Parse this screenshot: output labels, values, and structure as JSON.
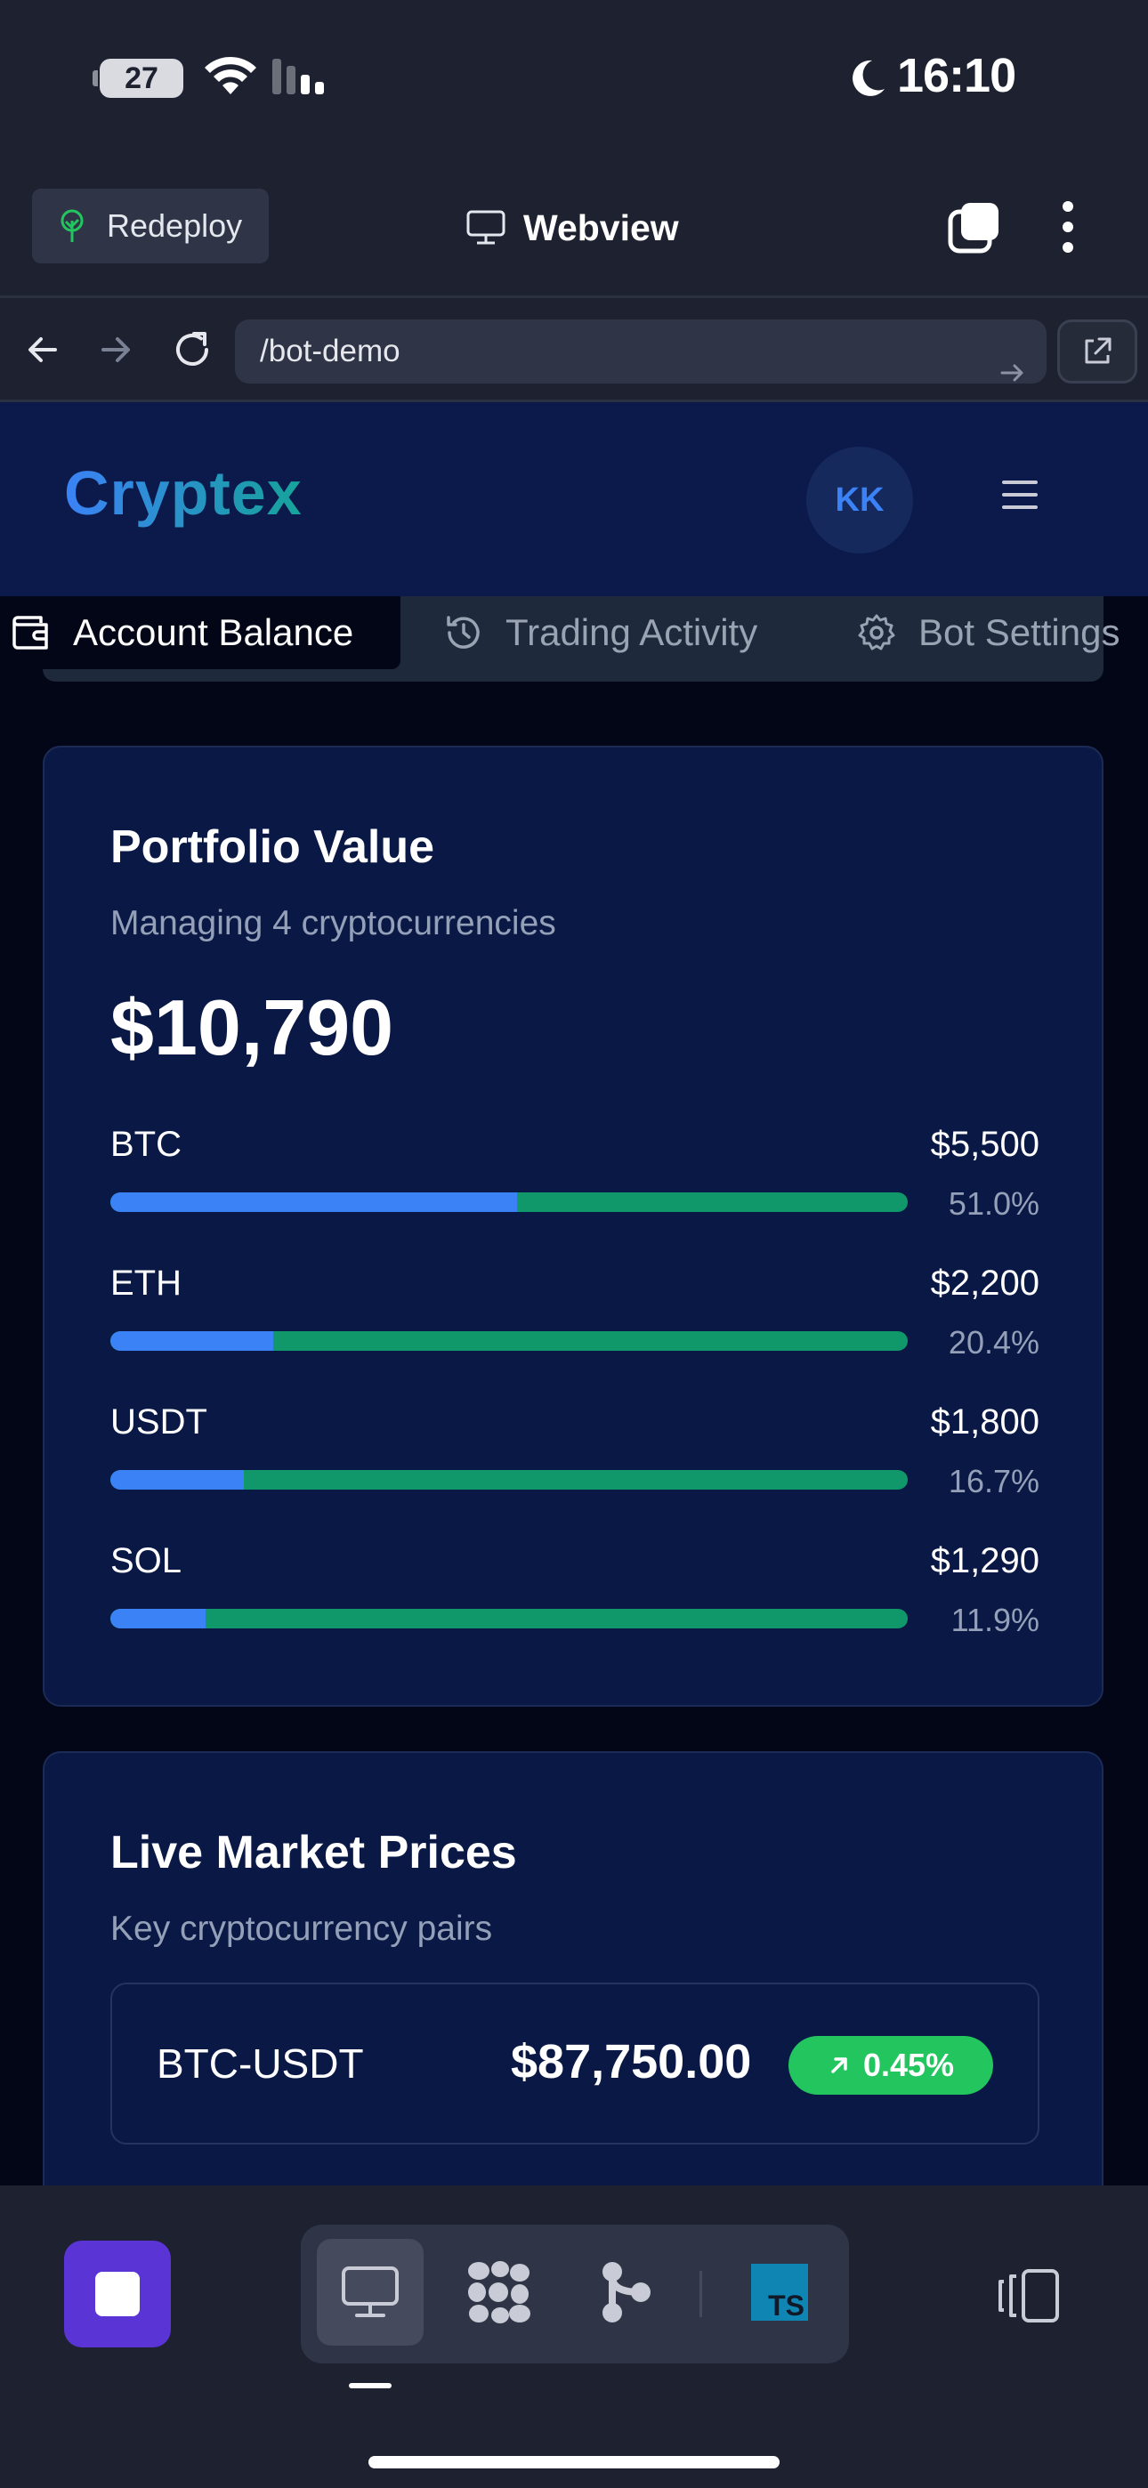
{
  "status_bar": {
    "battery_level": "27",
    "time": "16:10",
    "icons": [
      "wifi-icon",
      "signal-icon",
      "moon-icon"
    ]
  },
  "browser": {
    "redeploy_label": "Redeploy",
    "title": "Webview",
    "url": "/bot-demo"
  },
  "site": {
    "logo": "Cryptex",
    "avatar_initials": "KK",
    "tabs": [
      {
        "label": "Account Balance",
        "icon": "wallet-icon",
        "active": true
      },
      {
        "label": "Trading Activity",
        "icon": "history-icon",
        "active": false
      },
      {
        "label": "Bot Settings",
        "icon": "gear-icon",
        "active": false
      }
    ]
  },
  "portfolio": {
    "title": "Portfolio Value",
    "subtitle": "Managing 4 cryptocurrencies",
    "total": "$10,790",
    "assets": [
      {
        "symbol": "BTC",
        "value": "$5,500",
        "percent": "51.0%",
        "fraction": 0.51
      },
      {
        "symbol": "ETH",
        "value": "$2,200",
        "percent": "20.4%",
        "fraction": 0.204
      },
      {
        "symbol": "USDT",
        "value": "$1,800",
        "percent": "16.7%",
        "fraction": 0.167
      },
      {
        "symbol": "SOL",
        "value": "$1,290",
        "percent": "11.9%",
        "fraction": 0.119
      }
    ]
  },
  "market": {
    "title": "Live Market Prices",
    "subtitle": "Key cryptocurrency pairs",
    "rows": [
      {
        "pair": "BTC-USDT",
        "price": "$87,750.00",
        "change": "0.45%"
      }
    ]
  },
  "toolbar": {
    "tools": [
      "monitor-icon",
      "grid-dots-icon",
      "git-branch-icon",
      "typescript-icon"
    ],
    "ts_label": "TS"
  },
  "colors": {
    "accent_blue": "#3b82f6",
    "accent_green": "#10986a",
    "positive": "#22c55e",
    "stop_button": "#5b34d6"
  }
}
